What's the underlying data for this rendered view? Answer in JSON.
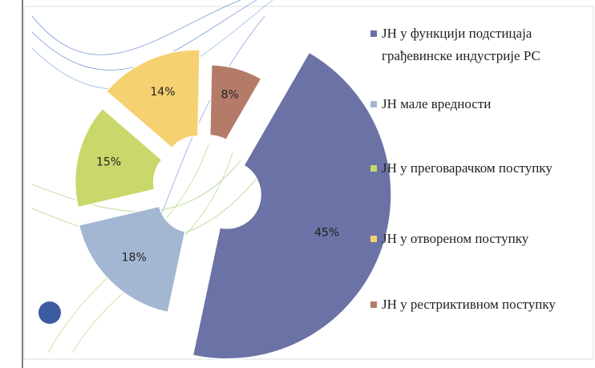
{
  "chart_data": {
    "type": "pie",
    "categories": [
      "ЈН у функцији подстицаја грађевинске индустрије РС",
      "ЈН мале вредности",
      "ЈН у преговарачком поступку",
      "ЈН у отвореном поступку",
      "ЈН у рестриктивном поступку"
    ],
    "values": [
      45,
      18,
      15,
      14,
      8
    ],
    "value_labels": [
      "45%",
      "18%",
      "15%",
      "14%",
      "8%"
    ],
    "colors": [
      "#6b72a6",
      "#a3b7d3",
      "#c9d76b",
      "#f6d172",
      "#b47b69"
    ]
  }
}
